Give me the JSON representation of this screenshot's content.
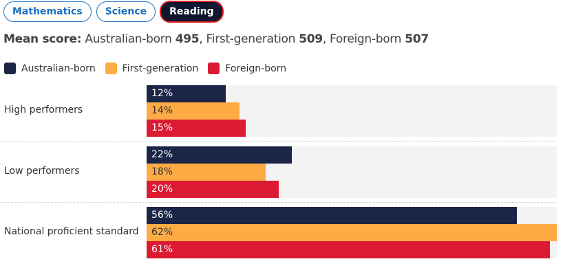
{
  "tabs": [
    {
      "label": "Mathematics"
    },
    {
      "label": "Science"
    },
    {
      "label": "Reading"
    }
  ],
  "active_tab": "Reading",
  "mean": {
    "prefix": "Mean score:",
    "items": [
      {
        "name": "Australian-born",
        "value": "495",
        "sep": ","
      },
      {
        "name": "First-generation",
        "value": "509",
        "sep": ","
      },
      {
        "name": "Foreign-born",
        "value": "507",
        "sep": ""
      }
    ]
  },
  "chart_data": {
    "type": "bar",
    "orientation": "horizontal",
    "categories": [
      "High performers",
      "Low performers",
      "National proficient standard"
    ],
    "series": [
      {
        "name": "Australian-born",
        "color": "#1b2647",
        "text_color": "#ffffff",
        "values": [
          12,
          22,
          56
        ]
      },
      {
        "name": "First-generation",
        "color": "#ffab45",
        "text_color": "#333333",
        "values": [
          14,
          18,
          62
        ]
      },
      {
        "name": "Foreign-born",
        "color": "#dc1a32",
        "text_color": "#ffffff",
        "values": [
          15,
          20,
          61
        ]
      }
    ],
    "value_suffix": "%",
    "xlim": [
      0,
      62
    ],
    "legend": "top-left"
  }
}
